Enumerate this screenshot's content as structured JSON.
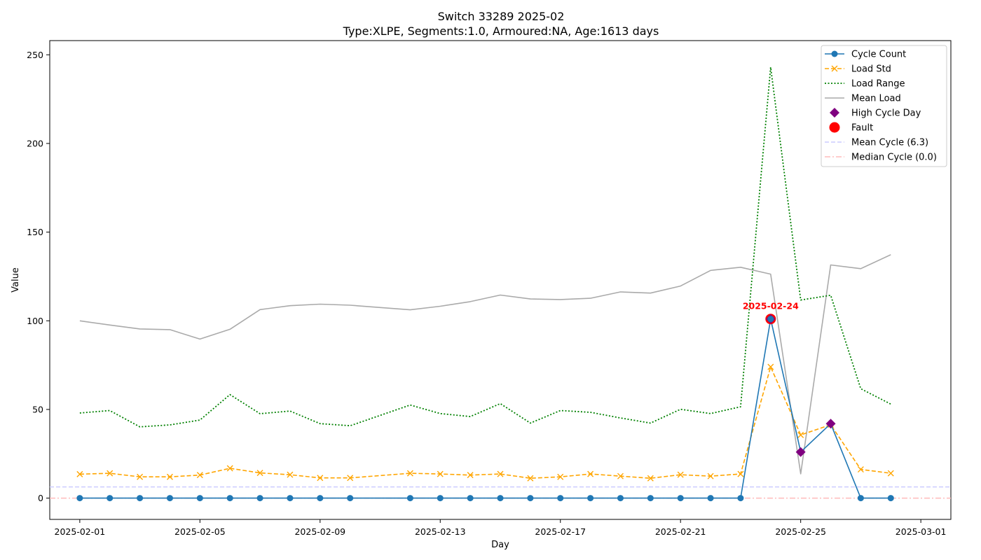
{
  "chart_data": {
    "type": "line",
    "title": "Switch 33289 2025-02",
    "subtitle": "Type:XLPE, Segments:1.0, Armoured:NA, Age:1613 days",
    "xlabel": "Day",
    "ylabel": "Value",
    "xlim": [
      "2025-01-31",
      "2025-03-02"
    ],
    "ylim": [
      -12,
      258
    ],
    "x_ticks": [
      "2025-02-01",
      "2025-02-05",
      "2025-02-09",
      "2025-02-13",
      "2025-02-17",
      "2025-02-21",
      "2025-02-25",
      "2025-03-01"
    ],
    "y_ticks": [
      0,
      50,
      100,
      150,
      200,
      250
    ],
    "grid": false,
    "legend_position": "top-right",
    "dates": [
      "2025-02-01",
      "2025-02-02",
      "2025-02-03",
      "2025-02-04",
      "2025-02-05",
      "2025-02-06",
      "2025-02-07",
      "2025-02-08",
      "2025-02-09",
      "2025-02-10",
      "2025-02-12",
      "2025-02-13",
      "2025-02-14",
      "2025-02-15",
      "2025-02-16",
      "2025-02-17",
      "2025-02-18",
      "2025-02-19",
      "2025-02-20",
      "2025-02-21",
      "2025-02-22",
      "2025-02-23",
      "2025-02-24",
      "2025-02-25",
      "2025-02-26",
      "2025-02-27",
      "2025-02-28"
    ],
    "series": [
      {
        "name": "Cycle Count",
        "color": "#1f77b4",
        "style": "solid-circle",
        "values": [
          0,
          0,
          0,
          0,
          0,
          0,
          0,
          0,
          0,
          0,
          0,
          0,
          0,
          0,
          0,
          0,
          0,
          0,
          0,
          0,
          0,
          0,
          101,
          26,
          42,
          0,
          0
        ]
      },
      {
        "name": "Load Std",
        "color": "#ffa500",
        "style": "dashed-x",
        "values": [
          13.5,
          14,
          12,
          12,
          13,
          16.8,
          14.2,
          13.2,
          11.4,
          11.4,
          14,
          13.6,
          13,
          13.6,
          11.2,
          12,
          13.6,
          12.4,
          11.2,
          13.2,
          12.4,
          13.6,
          74,
          35.6,
          41.4,
          16.2,
          14
        ]
      },
      {
        "name": "Load Range",
        "color": "#008000",
        "style": "dotted",
        "values": [
          48,
          49.4,
          40.2,
          41.3,
          44,
          58.4,
          47.6,
          49.1,
          42,
          40.8,
          52.5,
          47.7,
          46,
          53.3,
          42.3,
          49.4,
          48.4,
          45.2,
          42.3,
          50.1,
          47.7,
          51.5,
          243,
          111.7,
          114.4,
          61.7,
          53
        ]
      },
      {
        "name": "Mean Load",
        "color": "#aaaaaa",
        "style": "solid",
        "values": [
          100,
          97.6,
          95.4,
          95,
          89.7,
          95.2,
          106.3,
          108.5,
          109.4,
          108.8,
          106.2,
          108.2,
          110.8,
          114.5,
          112.3,
          112,
          112.7,
          116.3,
          115.6,
          119.6,
          128.4,
          130.2,
          126.3,
          13.7,
          131.5,
          129.4,
          137.3
        ]
      }
    ],
    "high_cycle_days": {
      "name": "High Cycle Day",
      "color": "#800080",
      "dates": [
        "2025-02-24",
        "2025-02-25",
        "2025-02-26"
      ],
      "values": [
        101,
        26,
        42
      ]
    },
    "fault": {
      "name": "Fault",
      "color": "#ff0000",
      "date": "2025-02-24",
      "value": 101,
      "annotation": "2025-02-24"
    },
    "reference_lines": [
      {
        "name": "Mean Cycle (6.3)",
        "value": 6.3,
        "color": "#ccccff",
        "style": "dashed"
      },
      {
        "name": "Median Cycle (0.0)",
        "value": 0.0,
        "color": "#ffbbbb",
        "style": "dashdot"
      }
    ]
  }
}
